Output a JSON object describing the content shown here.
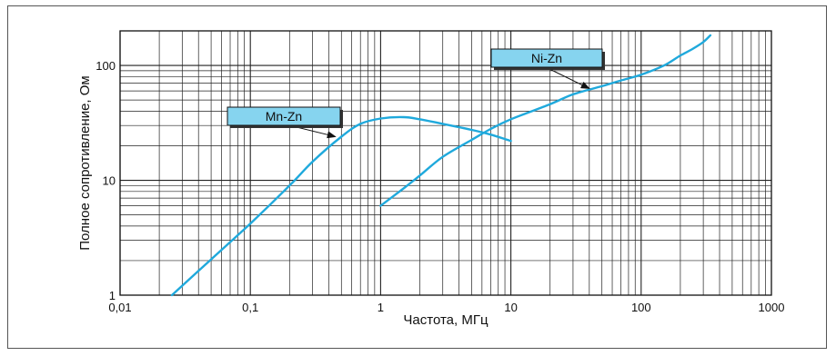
{
  "chart_data": {
    "type": "line",
    "title": "",
    "xlabel": "Частота, МГц",
    "ylabel": "Полное сопротивление, Ом",
    "xscale": "log",
    "yscale": "log",
    "xlim": [
      0.01,
      1000
    ],
    "ylim": [
      1,
      200
    ],
    "grid": true,
    "x_tick_labels": [
      {
        "value": 0.01,
        "label": "0,01"
      },
      {
        "value": 0.1,
        "label": "0,1"
      },
      {
        "value": 1,
        "label": "1"
      },
      {
        "value": 10,
        "label": "10"
      },
      {
        "value": 100,
        "label": "100"
      },
      {
        "value": 1000,
        "label": "1000"
      }
    ],
    "y_tick_labels": [
      {
        "value": 1,
        "label": "1"
      },
      {
        "value": 10,
        "label": "10"
      },
      {
        "value": 100,
        "label": "100"
      }
    ],
    "series": [
      {
        "name": "Mn-Zn",
        "color": "#1fa9dc",
        "x": [
          0.025,
          0.05,
          0.1,
          0.2,
          0.3,
          0.5,
          0.7,
          1.0,
          1.5,
          2.0,
          3.0,
          5.0,
          7.0,
          10.0
        ],
        "y": [
          1.0,
          2.05,
          4.2,
          9.0,
          14.5,
          24.0,
          31.0,
          34.5,
          35.5,
          34.0,
          31.0,
          27.5,
          25.0,
          22.0
        ]
      },
      {
        "name": "Ni-Zn",
        "color": "#1fa9dc",
        "x": [
          1.0,
          1.5,
          2.0,
          3.0,
          5.0,
          7.0,
          10.0,
          20.0,
          30.0,
          50.0,
          70.0,
          100.0,
          150.0,
          200.0,
          250.0,
          300.0,
          340.0
        ],
        "y": [
          6.0,
          8.5,
          11.0,
          16.0,
          22.5,
          28.0,
          34.0,
          46.0,
          56.0,
          66.0,
          74.0,
          83.0,
          100.0,
          122.0,
          140.0,
          160.0,
          183.0
        ]
      }
    ],
    "annotations": [
      {
        "text": "Mn-Zn",
        "points_to": {
          "x": 0.45,
          "y": 24
        }
      },
      {
        "text": "Ni-Zn",
        "points_to": {
          "x": 40,
          "y": 63
        }
      }
    ]
  }
}
